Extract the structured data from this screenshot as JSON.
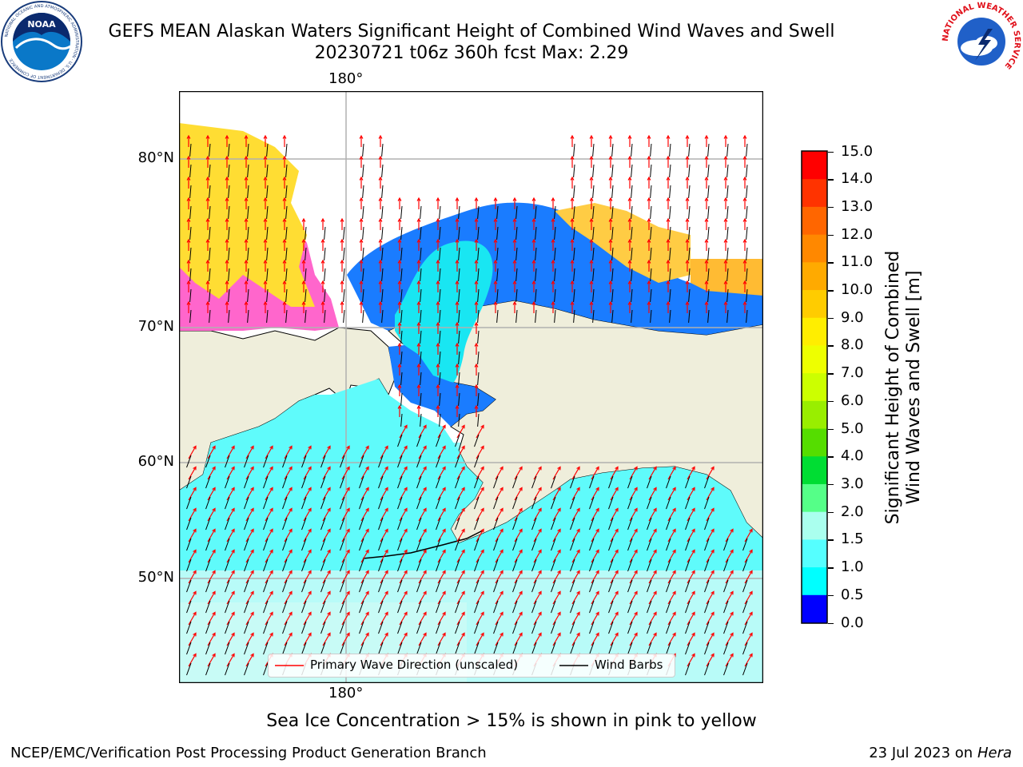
{
  "header": {
    "title_line1": "GEFS MEAN Alaskan Waters Significant Height of Combined Wind Waves and Swell",
    "title_line2": "20230721 t06z 360h fcst   Max: 2.29",
    "noaa_logo_text": "NOAA",
    "noaa_ring_text": "NATIONAL OCEANIC AND ATMOSPHERIC ADMINISTRATION · U.S. DEPARTMENT OF COMMERCE",
    "nws_ring_text": "NATIONAL WEATHER SERVICE"
  },
  "map": {
    "lon_label_top": "180°",
    "lon_label_bottom": "180°",
    "lat_labels": [
      "80°N",
      "70°N",
      "60°N",
      "50°N"
    ],
    "legend": {
      "wave_dir": "Primary Wave Direction (unscaled)",
      "wind_barbs": "Wind Barbs"
    },
    "colors": {
      "land": "#efeedb",
      "wave_arrow": "#ff0000",
      "barb": "#000000",
      "ice_pink": "#ff66cc",
      "ice_yellow": "#ffdd33"
    }
  },
  "colorbar": {
    "label_line1": "Significant Height of Combined",
    "label_line2": "Wind Waves and Swell [m]",
    "ticks": [
      "15.0",
      "14.0",
      "13.0",
      "12.0",
      "11.0",
      "10.0",
      "9.0",
      "8.0",
      "7.0",
      "6.0",
      "5.0",
      "4.0",
      "3.0",
      "2.0",
      "1.5",
      "1.0",
      "0.5",
      "0.0"
    ],
    "colors": [
      "#ff0000",
      "#ff3300",
      "#ff6600",
      "#ff8800",
      "#ffaa00",
      "#ffcc00",
      "#ffee00",
      "#eeff00",
      "#ccff00",
      "#99ee00",
      "#55dd00",
      "#00dd33",
      "#55ff88",
      "#aaffee",
      "#55ffff",
      "#00ffff",
      "#0077ff",
      "#0000ff"
    ]
  },
  "caption": "Sea Ice Concentration > 15% is shown in pink to yellow",
  "footer": {
    "left": "NCEP/EMC/Verification Post Processing Product Generation Branch",
    "right_prefix": "23 Jul 2023 on ",
    "right_host": "Hera"
  }
}
